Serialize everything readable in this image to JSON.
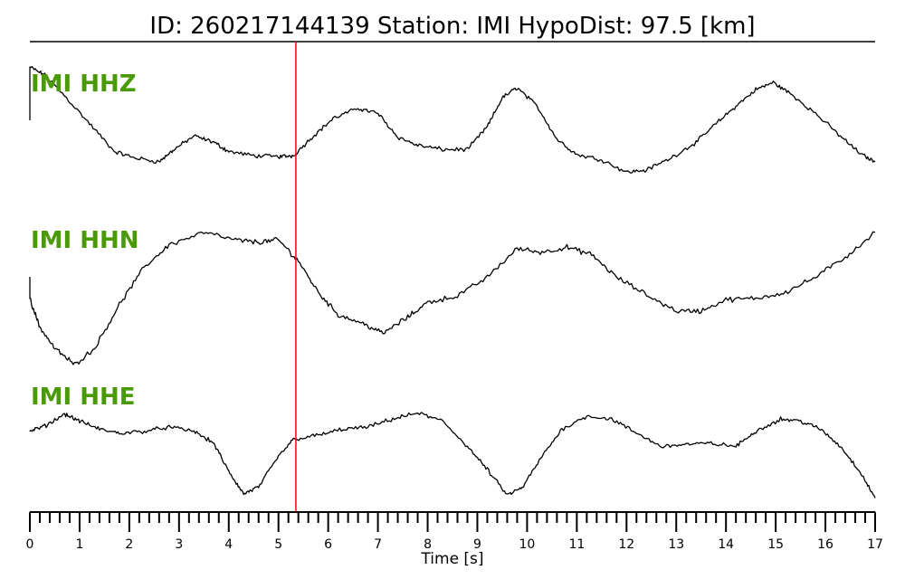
{
  "chart_data": {
    "type": "line",
    "title": "ID: 260217144139   Station: IMI   HypoDist:    97.5 [km]",
    "xlabel": "Time [s]",
    "xlim": [
      0,
      17
    ],
    "x_ticks": [
      "0",
      "1",
      "2",
      "3",
      "4",
      "5",
      "6",
      "7",
      "8",
      "9",
      "10",
      "11",
      "12",
      "13",
      "14",
      "15",
      "16",
      "17"
    ],
    "minor_tick_step": 0.2,
    "grid": false,
    "label_color": "#4a9a08",
    "trace_color": "#000000",
    "marker": {
      "x": 5.35,
      "color": "#ff0000"
    },
    "series": [
      {
        "name": "IMI HHZ",
        "points": [
          [
            0,
            1.0
          ],
          [
            0.3,
            0.92
          ],
          [
            0.7,
            0.72
          ],
          [
            1.2,
            0.45
          ],
          [
            1.7,
            0.18
          ],
          [
            2.1,
            0.12
          ],
          [
            2.6,
            0.08
          ],
          [
            2.9,
            0.2
          ],
          [
            3.3,
            0.33
          ],
          [
            3.7,
            0.27
          ],
          [
            4.0,
            0.18
          ],
          [
            4.5,
            0.14
          ],
          [
            5.0,
            0.13
          ],
          [
            5.3,
            0.14
          ],
          [
            5.7,
            0.33
          ],
          [
            6.1,
            0.5
          ],
          [
            6.6,
            0.6
          ],
          [
            7.0,
            0.55
          ],
          [
            7.4,
            0.32
          ],
          [
            7.8,
            0.24
          ],
          [
            8.3,
            0.2
          ],
          [
            8.8,
            0.2
          ],
          [
            9.2,
            0.42
          ],
          [
            9.5,
            0.7
          ],
          [
            9.8,
            0.8
          ],
          [
            10.2,
            0.62
          ],
          [
            10.6,
            0.3
          ],
          [
            11.0,
            0.15
          ],
          [
            11.5,
            0.1
          ],
          [
            12.0,
            -0.02
          ],
          [
            12.4,
            0.0
          ],
          [
            12.9,
            0.12
          ],
          [
            13.4,
            0.27
          ],
          [
            13.8,
            0.45
          ],
          [
            14.2,
            0.62
          ],
          [
            14.6,
            0.78
          ],
          [
            14.95,
            0.85
          ],
          [
            15.3,
            0.74
          ],
          [
            15.8,
            0.55
          ],
          [
            16.3,
            0.33
          ],
          [
            16.7,
            0.16
          ],
          [
            17.0,
            0.08
          ]
        ]
      },
      {
        "name": "IMI HHN",
        "points": [
          [
            0,
            0.45
          ],
          [
            0.2,
            0.22
          ],
          [
            0.5,
            0.05
          ],
          [
            0.9,
            -0.08
          ],
          [
            1.3,
            0.05
          ],
          [
            1.8,
            0.4
          ],
          [
            2.3,
            0.7
          ],
          [
            2.8,
            0.88
          ],
          [
            3.5,
            0.98
          ],
          [
            4.1,
            0.92
          ],
          [
            4.6,
            0.9
          ],
          [
            5.0,
            0.92
          ],
          [
            5.4,
            0.75
          ],
          [
            5.8,
            0.5
          ],
          [
            6.2,
            0.32
          ],
          [
            6.7,
            0.25
          ],
          [
            7.1,
            0.17
          ],
          [
            7.6,
            0.3
          ],
          [
            8.0,
            0.42
          ],
          [
            8.6,
            0.47
          ],
          [
            9.2,
            0.62
          ],
          [
            9.8,
            0.85
          ],
          [
            10.3,
            0.82
          ],
          [
            10.8,
            0.86
          ],
          [
            11.3,
            0.8
          ],
          [
            11.8,
            0.62
          ],
          [
            12.4,
            0.48
          ],
          [
            13.0,
            0.35
          ],
          [
            13.5,
            0.35
          ],
          [
            14.0,
            0.44
          ],
          [
            14.6,
            0.45
          ],
          [
            15.2,
            0.5
          ],
          [
            15.8,
            0.62
          ],
          [
            16.4,
            0.78
          ],
          [
            17.0,
            0.98
          ]
        ]
      },
      {
        "name": "IMI HHE",
        "points": [
          [
            0,
            0.7
          ],
          [
            0.3,
            0.75
          ],
          [
            0.7,
            0.87
          ],
          [
            1.0,
            0.8
          ],
          [
            1.4,
            0.72
          ],
          [
            1.8,
            0.68
          ],
          [
            2.3,
            0.7
          ],
          [
            2.8,
            0.74
          ],
          [
            3.3,
            0.7
          ],
          [
            3.7,
            0.58
          ],
          [
            4.0,
            0.3
          ],
          [
            4.3,
            0.08
          ],
          [
            4.6,
            0.15
          ],
          [
            5.0,
            0.45
          ],
          [
            5.3,
            0.62
          ],
          [
            5.8,
            0.66
          ],
          [
            6.3,
            0.72
          ],
          [
            6.8,
            0.74
          ],
          [
            7.3,
            0.82
          ],
          [
            7.8,
            0.88
          ],
          [
            8.3,
            0.8
          ],
          [
            8.8,
            0.55
          ],
          [
            9.2,
            0.32
          ],
          [
            9.6,
            0.07
          ],
          [
            9.9,
            0.14
          ],
          [
            10.3,
            0.45
          ],
          [
            10.7,
            0.72
          ],
          [
            11.2,
            0.85
          ],
          [
            11.7,
            0.82
          ],
          [
            12.2,
            0.68
          ],
          [
            12.7,
            0.55
          ],
          [
            13.2,
            0.57
          ],
          [
            13.7,
            0.58
          ],
          [
            14.2,
            0.55
          ],
          [
            14.6,
            0.7
          ],
          [
            15.1,
            0.82
          ],
          [
            15.5,
            0.8
          ],
          [
            15.9,
            0.72
          ],
          [
            16.3,
            0.55
          ],
          [
            16.7,
            0.3
          ],
          [
            17.0,
            0.04
          ]
        ]
      }
    ]
  }
}
